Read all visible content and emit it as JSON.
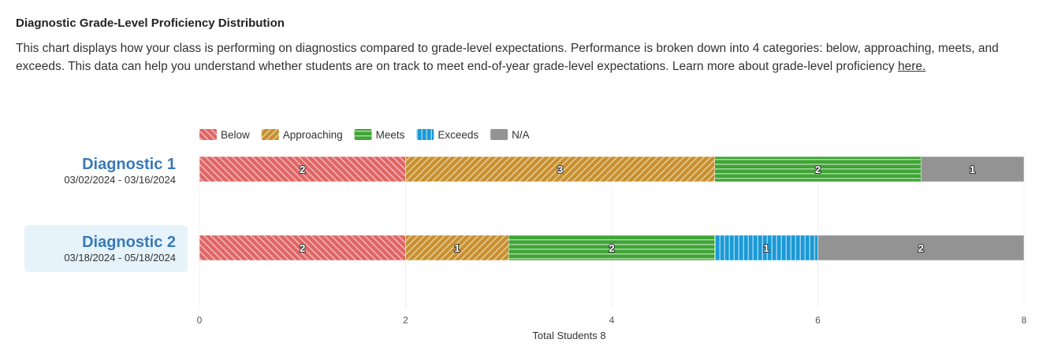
{
  "title": "Diagnostic Grade-Level Proficiency Distribution",
  "description": "This chart displays how your class is performing on diagnostics compared to grade-level expectations. Performance is broken down into 4 categories: below, approaching, meets, and exceeds. This data can help you understand whether students are on track to meet end-of-year grade-level expectations. Learn more about grade-level proficiency ",
  "link_text": "here.",
  "rows": [
    {
      "name": "Diagnostic 1",
      "dates": "03/02/2024 - 03/16/2024",
      "selected": false
    },
    {
      "name": "Diagnostic 2",
      "dates": "03/18/2024 - 05/18/2024",
      "selected": true
    }
  ],
  "chart_data": {
    "type": "bar",
    "orientation": "horizontal",
    "stacked": true,
    "categories": [
      "Diagnostic 1",
      "Diagnostic 2"
    ],
    "series": [
      {
        "name": "Below",
        "color": "#e06666",
        "pattern": "diagonal-right",
        "values": [
          2,
          2
        ]
      },
      {
        "name": "Approaching",
        "color": "#c8902e",
        "pattern": "diagonal-left",
        "values": [
          3,
          1
        ]
      },
      {
        "name": "Meets",
        "color": "#3fa535",
        "pattern": "horizontal",
        "values": [
          2,
          2
        ]
      },
      {
        "name": "Exceeds",
        "color": "#1a9ad6",
        "pattern": "vertical",
        "values": [
          0,
          1
        ]
      },
      {
        "name": "N/A",
        "color": "#939393",
        "pattern": "solid",
        "values": [
          1,
          2
        ]
      }
    ],
    "xlim": [
      0,
      8
    ],
    "xticks": [
      0,
      2,
      4,
      6,
      8
    ],
    "xlabel": "Total Students 8",
    "legend": "top-left",
    "grid": true
  }
}
